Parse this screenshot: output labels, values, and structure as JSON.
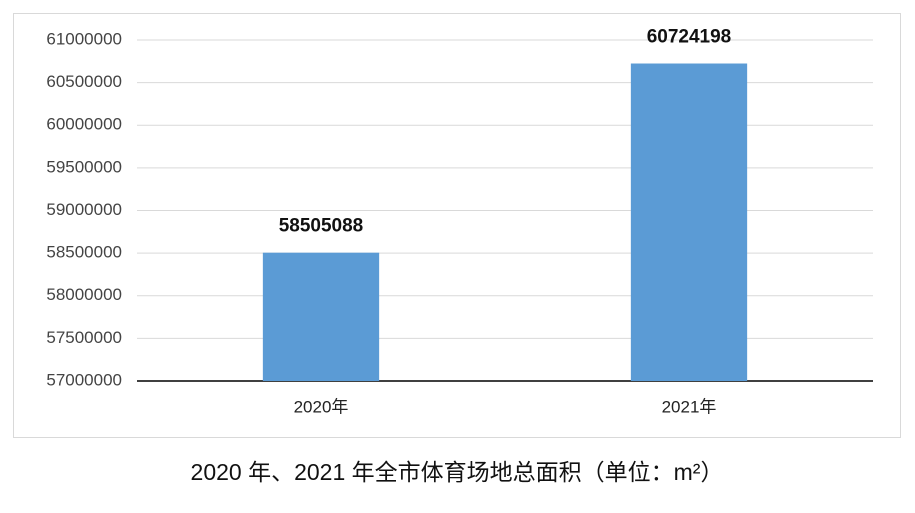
{
  "chart_data": {
    "type": "bar",
    "title": "2020 年、2021 年全市体育场地总面积（单位：m²）",
    "categories": [
      "2020年",
      "2021年"
    ],
    "values": [
      58505088,
      60724198
    ],
    "color": "#5b9bd5",
    "ylim": [
      57000000,
      61000000
    ],
    "yticks": [
      57000000,
      57500000,
      58000000,
      58500000,
      59000000,
      59500000,
      60000000,
      60500000,
      61000000
    ],
    "grid": true
  }
}
